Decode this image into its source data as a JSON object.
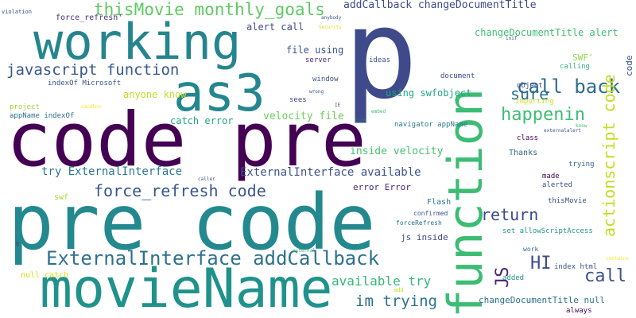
{
  "words": [
    {
      "text": "pre code",
      "color": "#23898e"
    },
    {
      "text": "code pre",
      "color": "#440154"
    },
    {
      "text": "p",
      "color": "#3e4a89"
    },
    {
      "text": "movieName",
      "color": "#20928c"
    },
    {
      "text": "working",
      "color": "#25858e"
    },
    {
      "text": "function",
      "color": "#3dbc74"
    },
    {
      "text": "as3",
      "color": "#24868e"
    },
    {
      "text": "ExternalInterface addCallback",
      "color": "#2d718e"
    },
    {
      "text": "thisMovie monthly_goals",
      "color": "#5ec962"
    },
    {
      "text": "call back",
      "color": "#2f6c8e"
    },
    {
      "text": "javascript function",
      "color": "#38598c"
    },
    {
      "text": "actionscript code",
      "color": "#c2df23"
    },
    {
      "text": "happenin",
      "color": "#3fbc73"
    },
    {
      "text": "force_refresh code",
      "color": "#39568c"
    },
    {
      "text": "sure",
      "color": "#2f6b8e"
    },
    {
      "text": "return",
      "color": "#3e4989"
    },
    {
      "text": "JS",
      "color": "#482677"
    },
    {
      "text": "HI",
      "color": "#3e4989"
    },
    {
      "text": "call",
      "color": "#3b528b"
    },
    {
      "text": "im trying",
      "color": "#2c728e"
    },
    {
      "text": "available try",
      "color": "#35b779"
    },
    {
      "text": "addCallback changeDocumentTitle",
      "color": "#3e4989"
    },
    {
      "text": "changeDocumentTitle alert",
      "color": "#3fbc73"
    },
    {
      "text": "ExternalInterface available",
      "color": "#3b528b"
    },
    {
      "text": "try ExternalInterface",
      "color": "#2a788e"
    },
    {
      "text": "inside velocity",
      "color": "#46c06f"
    },
    {
      "text": "velocity file",
      "color": "#6ccd5a"
    },
    {
      "text": "anyone know",
      "color": "#bddf26"
    },
    {
      "text": "catch error",
      "color": "#23a983"
    },
    {
      "text": "using swfobject",
      "color": "#21a685"
    },
    {
      "text": "file using",
      "color": "#3b528b"
    },
    {
      "text": "alert call",
      "color": "#3e4989"
    },
    {
      "text": "changeDocumentTitle null",
      "color": "#2d718e"
    },
    {
      "text": "error Error",
      "color": "#482878"
    },
    {
      "text": "js inside",
      "color": "#3e4989"
    },
    {
      "text": "null catch",
      "color": "#d8e219"
    },
    {
      "text": "force_refresh'",
      "color": "#46337e"
    },
    {
      "text": "code",
      "color": "#3b528b"
    },
    {
      "text": "SWF'",
      "color": "#8fd744"
    },
    {
      "text": "Thanks",
      "color": "#2f6b8e"
    },
    {
      "text": "swf",
      "color": "#a2da37"
    },
    {
      "text": "Flash",
      "color": "#2a788e"
    },
    {
      "text": "set allowScriptAccess",
      "color": "#21918c"
    },
    {
      "text": "calling",
      "color": "#35b779"
    },
    {
      "text": "importing",
      "color": "#c8e020"
    },
    {
      "text": "server",
      "color": "#482878"
    },
    {
      "text": "window",
      "color": "#3b528b"
    },
    {
      "text": "object",
      "color": "#3e4989"
    },
    {
      "text": "ideas",
      "color": "#3b528b"
    },
    {
      "text": "class",
      "color": "#440154"
    },
    {
      "text": "document",
      "color": "#3e4989"
    },
    {
      "text": "sees",
      "color": "#3e4989"
    },
    {
      "text": "indexOf Microsoft",
      "color": "#3b528b"
    },
    {
      "text": "appName indexOf",
      "color": "#2c728e"
    },
    {
      "text": "navigator appName",
      "color": "#2a788e"
    },
    {
      "text": "project",
      "color": "#9bd93c"
    },
    {
      "text": "trying",
      "color": "#31688e"
    },
    {
      "text": "made",
      "color": "#440154"
    },
    {
      "text": "alerted",
      "color": "#3e4989"
    },
    {
      "text": "thisMovie",
      "color": "#3b528b"
    },
    {
      "text": "confirmed",
      "color": "#3b528b"
    },
    {
      "text": "forceRefresh",
      "color": "#2c728e"
    },
    {
      "text": "work",
      "color": "#2f6b8e"
    },
    {
      "text": "added",
      "color": "#21918c"
    },
    {
      "text": "index html",
      "color": "#3b528b"
    },
    {
      "text": "always",
      "color": "#440154"
    },
    {
      "text": "run",
      "color": "#2c728e"
    },
    {
      "text": "violation",
      "color": "#3e4989"
    },
    {
      "text": "Security",
      "color": "#d8e219"
    },
    {
      "text": "anybody",
      "color": "#3b528b"
    },
    {
      "text": "inif",
      "color": "#3e4989"
    },
    {
      "text": "sandbox",
      "color": "#fde725"
    },
    {
      "text": "wrong",
      "color": "#3e4989"
    },
    {
      "text": "IE",
      "color": "#3e4989"
    },
    {
      "text": "embed",
      "color": "#3fbc73"
    },
    {
      "text": "externalalert",
      "color": "#3b528b"
    },
    {
      "text": "know",
      "color": "#3fbc73"
    },
    {
      "text": "caller",
      "color": "#3e4989"
    },
    {
      "text": "external",
      "color": "#3fbc73"
    },
    {
      "text": "contains",
      "color": "#fde725"
    },
    {
      "text": "B",
      "color": "#3e4989"
    },
    {
      "text": "add",
      "color": "#c2df23"
    }
  ]
}
